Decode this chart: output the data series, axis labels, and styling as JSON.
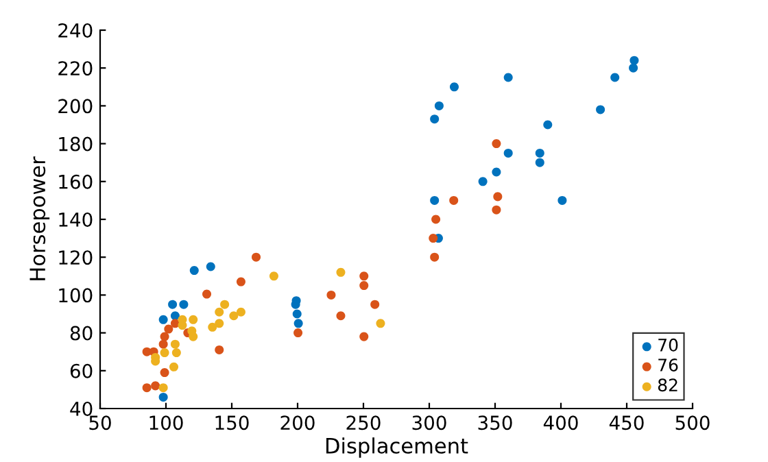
{
  "chart_data": {
    "type": "scatter",
    "xlabel": "Displacement",
    "ylabel": "Horsepower",
    "xlim": [
      50,
      500
    ],
    "ylim": [
      40,
      240
    ],
    "xticks": [
      50,
      100,
      150,
      200,
      250,
      300,
      350,
      400,
      450,
      500
    ],
    "yticks": [
      40,
      60,
      80,
      100,
      120,
      140,
      160,
      180,
      200,
      220,
      240
    ],
    "grid": false,
    "legend": "bottom right",
    "marker": "circle",
    "series": [
      {
        "name": "70",
        "color": "#0072bd",
        "x": [
          98,
          98,
          105,
          107,
          113.5,
          121.5,
          134,
          199,
          198.5,
          199.6,
          200.6,
          455.7,
          455,
          441,
          430,
          319,
          360,
          307.5,
          304,
          390,
          360,
          384,
          384,
          351,
          340.7,
          304,
          401,
          307
        ],
        "values": [
          46,
          87,
          95,
          89,
          95,
          113,
          115,
          97,
          95,
          90,
          85,
          224,
          220,
          215,
          198,
          210,
          215,
          200,
          193,
          190,
          175,
          175,
          170,
          165,
          160,
          150,
          150,
          130
        ]
      },
      {
        "name": "76",
        "color": "#d95319",
        "x": [
          351,
          318.6,
          352,
          351,
          305,
          303,
          304,
          250.4,
          250.4,
          225.5,
          258.7,
          232.8,
          250.4,
          168.5,
          157,
          131,
          140.5,
          200.3,
          107,
          102,
          99,
          98,
          116.6,
          85.5,
          90.7,
          99,
          85.5,
          92
        ],
        "values": [
          180,
          150,
          152,
          145,
          140,
          130,
          120,
          110,
          105,
          100,
          95,
          89,
          78,
          120,
          107,
          100.5,
          71,
          80,
          85,
          82,
          78,
          74,
          80,
          70,
          70,
          59,
          51,
          52
        ]
      },
      {
        "name": "82",
        "color": "#edb120",
        "x": [
          232.8,
          263,
          182,
          144.6,
          140.5,
          157,
          151.5,
          140.5,
          135.3,
          112.5,
          112.5,
          119.7,
          120.7,
          120.7,
          107,
          108,
          92,
          92,
          99,
          106,
          98
        ],
        "values": [
          112,
          85,
          110,
          95,
          91,
          91,
          89,
          85,
          83,
          87,
          84,
          81,
          78,
          87,
          74,
          69.5,
          67,
          65,
          69.5,
          62,
          51
        ]
      }
    ]
  }
}
